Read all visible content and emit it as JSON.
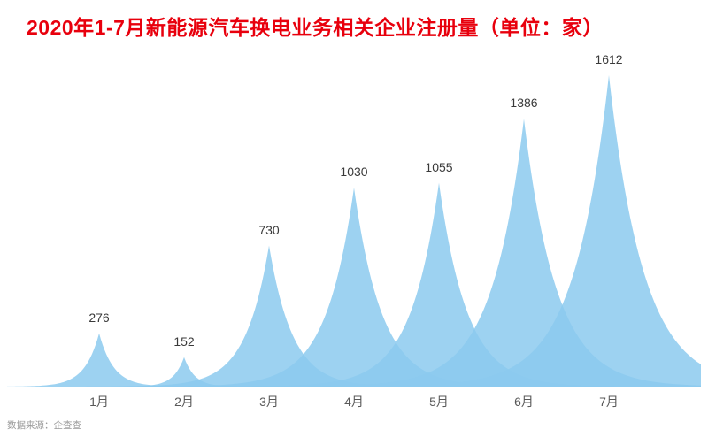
{
  "title": "2020年1-7月新能源汽车换电业务相关企业注册量（单位：家）",
  "source": "数据来源：企查查",
  "chart_data": {
    "type": "area",
    "subtype": "peak-spikes",
    "title": "2020年1-7月新能源汽车换电业务相关企业注册量（单位：家）",
    "categories": [
      "1月",
      "2月",
      "3月",
      "4月",
      "5月",
      "6月",
      "7月"
    ],
    "values": [
      276,
      152,
      730,
      1030,
      1055,
      1386,
      1612
    ],
    "xlabel": "",
    "ylabel": "",
    "ylim": [
      0,
      1700
    ],
    "grid": false,
    "legend": "none",
    "data_labels": true,
    "colors": {
      "peak_fill": "#8ccaee",
      "peak_opacity": 0.85,
      "title": "#e8000d",
      "value_label": "#3a3a3a",
      "axis_label": "#595959",
      "source": "#9a9a9a",
      "baseline": "#ececec"
    }
  }
}
